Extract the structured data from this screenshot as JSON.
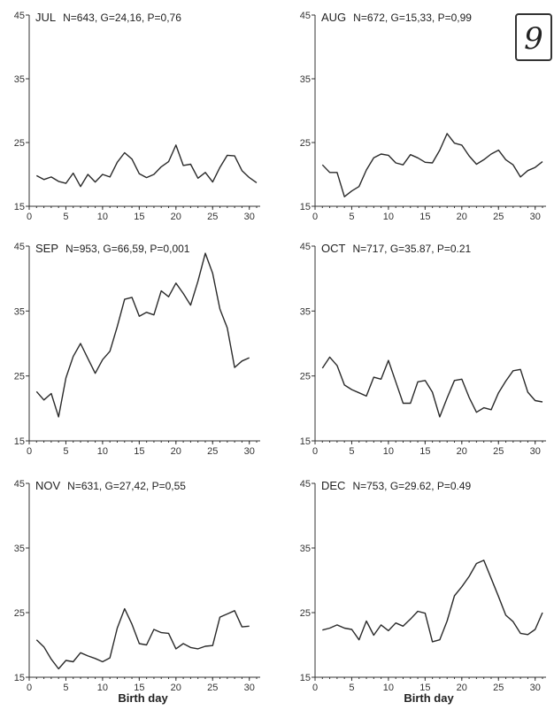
{
  "handwritten_mark": "9",
  "colors": {
    "series": "#2a2a2a",
    "axis": "#333333"
  },
  "chart_data": [
    {
      "type": "line",
      "month": "JUL",
      "stats": "N=643, G=24,16, P=0,76",
      "xlabel": "",
      "ylim": [
        15,
        45
      ],
      "xlim": [
        0,
        31
      ],
      "yticks": [
        15,
        25,
        35,
        45
      ],
      "xticks": [
        0,
        5,
        10,
        15,
        20,
        25,
        30
      ],
      "x": [
        1,
        2,
        3,
        4,
        5,
        6,
        7,
        8,
        9,
        10,
        11,
        12,
        13,
        14,
        15,
        16,
        17,
        18,
        19,
        20,
        21,
        22,
        23,
        24,
        25,
        26,
        27,
        28,
        29,
        30,
        31
      ],
      "values": [
        19.8,
        19.2,
        19.6,
        18.9,
        18.6,
        20.2,
        18.1,
        20.0,
        18.8,
        20.0,
        19.6,
        21.9,
        23.4,
        22.4,
        20.1,
        19.5,
        20.0,
        21.2,
        22.0,
        24.6,
        21.4,
        21.6,
        19.4,
        20.3,
        18.8,
        21.1,
        23.0,
        22.9,
        20.6,
        19.5,
        18.7
      ]
    },
    {
      "type": "line",
      "month": "AUG",
      "stats": "N=672, G=15,33, P=0,99",
      "xlabel": "",
      "ylim": [
        15,
        45
      ],
      "xlim": [
        0,
        31
      ],
      "yticks": [
        15,
        25,
        35,
        45
      ],
      "xticks": [
        0,
        5,
        10,
        15,
        20,
        25,
        30
      ],
      "x": [
        1,
        2,
        3,
        4,
        5,
        6,
        7,
        8,
        9,
        10,
        11,
        12,
        13,
        14,
        15,
        16,
        17,
        18,
        19,
        20,
        21,
        22,
        23,
        24,
        25,
        26,
        27,
        28,
        29,
        30,
        31
      ],
      "values": [
        21.5,
        20.3,
        20.3,
        16.5,
        17.4,
        18.1,
        20.7,
        22.6,
        23.2,
        23.0,
        21.8,
        21.5,
        23.1,
        22.6,
        21.9,
        21.8,
        23.8,
        26.4,
        24.9,
        24.6,
        22.9,
        21.6,
        22.3,
        23.2,
        23.8,
        22.3,
        21.5,
        19.6,
        20.6,
        21.1,
        22.0
      ]
    },
    {
      "type": "line",
      "month": "SEP",
      "stats": "N=953, G=66,59, P=0,001",
      "xlabel": "",
      "ylim": [
        15,
        45
      ],
      "xlim": [
        0,
        31
      ],
      "yticks": [
        15,
        25,
        35,
        45
      ],
      "xticks": [
        0,
        5,
        10,
        15,
        20,
        25,
        30
      ],
      "x": [
        1,
        2,
        3,
        4,
        5,
        6,
        7,
        8,
        9,
        10,
        11,
        12,
        13,
        14,
        15,
        16,
        17,
        18,
        19,
        20,
        21,
        22,
        23,
        24,
        25,
        26,
        27,
        28,
        29,
        30
      ],
      "values": [
        22.6,
        21.3,
        22.3,
        18.7,
        24.7,
        28.0,
        30.0,
        27.7,
        25.4,
        27.5,
        28.8,
        32.6,
        36.8,
        37.1,
        34.2,
        34.8,
        34.4,
        38.1,
        37.2,
        39.3,
        37.7,
        35.9,
        39.6,
        43.9,
        40.8,
        35.3,
        32.4,
        26.3,
        27.3,
        27.8
      ]
    },
    {
      "type": "line",
      "month": "OCT",
      "stats": "N=717, G=35.87, P=0.21",
      "xlabel": "",
      "ylim": [
        15,
        45
      ],
      "xlim": [
        0,
        31
      ],
      "yticks": [
        15,
        25,
        35,
        45
      ],
      "xticks": [
        0,
        5,
        10,
        15,
        20,
        25,
        30
      ],
      "x": [
        1,
        2,
        3,
        4,
        5,
        6,
        7,
        8,
        9,
        10,
        11,
        12,
        13,
        14,
        15,
        16,
        17,
        18,
        19,
        20,
        21,
        22,
        23,
        24,
        25,
        26,
        27,
        28,
        29,
        30,
        31
      ],
      "values": [
        26.2,
        27.9,
        26.6,
        23.6,
        22.9,
        22.4,
        21.9,
        24.8,
        24.5,
        27.4,
        24.1,
        20.8,
        20.8,
        24.1,
        24.3,
        22.5,
        18.7,
        21.6,
        24.3,
        24.5,
        21.7,
        19.4,
        20.1,
        19.8,
        22.4,
        24.2,
        25.8,
        26.0,
        22.5,
        21.2,
        21.0
      ]
    },
    {
      "type": "line",
      "month": "NOV",
      "stats": "N=631, G=27,42, P=0,55",
      "xlabel": "Birth day",
      "ylim": [
        15,
        45
      ],
      "xlim": [
        0,
        31
      ],
      "yticks": [
        15,
        25,
        35,
        45
      ],
      "xticks": [
        0,
        5,
        10,
        15,
        20,
        25,
        30
      ],
      "x": [
        1,
        2,
        3,
        4,
        5,
        6,
        7,
        8,
        9,
        10,
        11,
        12,
        13,
        14,
        15,
        16,
        17,
        18,
        19,
        20,
        21,
        22,
        23,
        24,
        25,
        26,
        27,
        28,
        29,
        30
      ],
      "values": [
        20.8,
        19.7,
        17.8,
        16.3,
        17.6,
        17.4,
        18.8,
        18.3,
        17.9,
        17.4,
        18.0,
        22.6,
        25.6,
        23.2,
        20.2,
        20.0,
        22.4,
        21.9,
        21.8,
        19.4,
        20.2,
        19.6,
        19.4,
        19.8,
        19.9,
        24.3,
        24.8,
        25.3,
        22.8,
        22.9
      ]
    },
    {
      "type": "line",
      "month": "DEC",
      "stats": "N=753, G=29.62, P=0.49",
      "xlabel": "Birth day",
      "ylim": [
        15,
        45
      ],
      "xlim": [
        0,
        31
      ],
      "yticks": [
        15,
        25,
        35,
        45
      ],
      "xticks": [
        0,
        5,
        10,
        15,
        20,
        25,
        30
      ],
      "x": [
        1,
        2,
        3,
        4,
        5,
        6,
        7,
        8,
        9,
        10,
        11,
        12,
        13,
        14,
        15,
        16,
        17,
        18,
        19,
        20,
        21,
        22,
        23,
        24,
        25,
        26,
        27,
        28,
        29,
        30,
        31
      ],
      "values": [
        22.3,
        22.6,
        23.1,
        22.6,
        22.4,
        20.8,
        23.7,
        21.5,
        23.1,
        22.2,
        23.4,
        22.9,
        24.0,
        25.2,
        24.9,
        20.5,
        20.8,
        23.7,
        27.6,
        29.0,
        30.6,
        32.6,
        33.1,
        30.3,
        27.5,
        24.6,
        23.6,
        21.8,
        21.6,
        22.4,
        25.0
      ]
    }
  ]
}
